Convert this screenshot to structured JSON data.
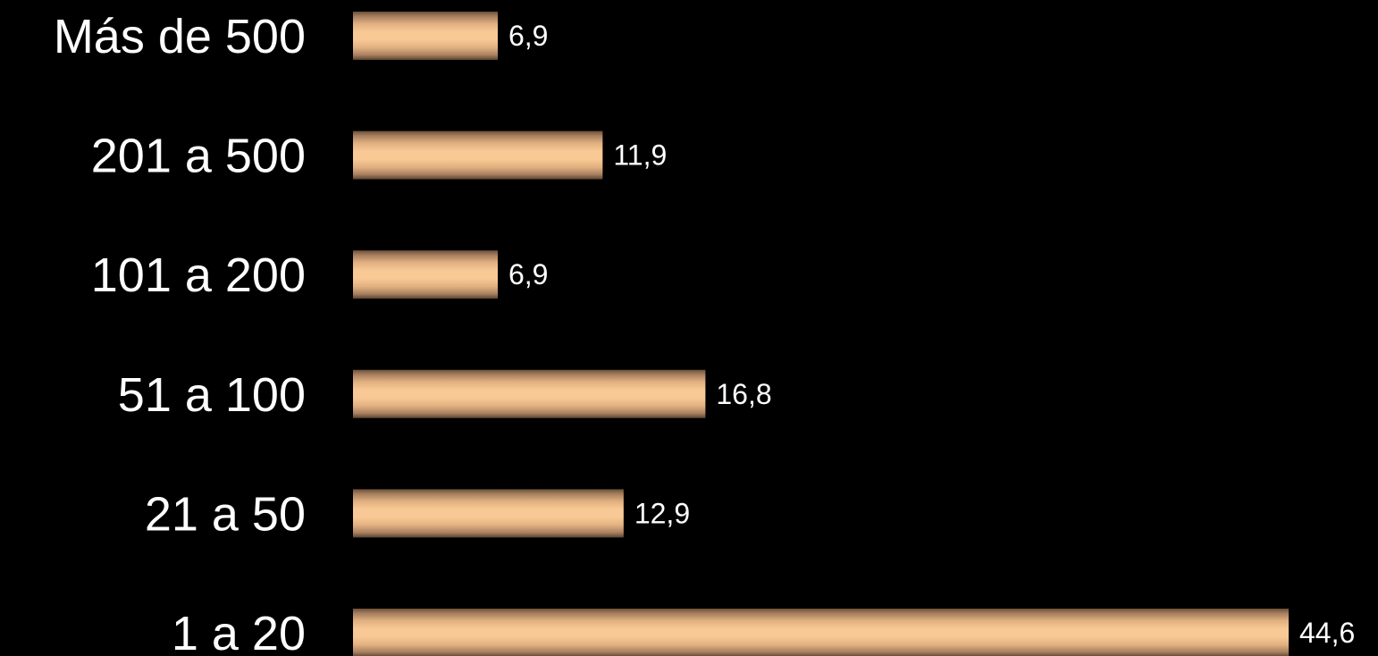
{
  "chart_data": {
    "type": "bar",
    "orientation": "horizontal",
    "categories": [
      "Más de 500",
      "201 a 500",
      "101 a 200",
      "51 a 100",
      "21 a 50",
      "1 a 20"
    ],
    "values": [
      6.9,
      11.9,
      6.9,
      16.8,
      12.9,
      44.6
    ],
    "value_labels": [
      "6,9",
      "11,9",
      "6,9",
      "16,8",
      "12,9",
      "44,6"
    ],
    "title": "",
    "xlabel": "",
    "ylabel": "",
    "xlim": [
      0,
      44.6
    ],
    "grid": false,
    "legend": "none"
  },
  "colors": {
    "background": "#000000",
    "bar_light": "#f7c48f",
    "bar_dark": "#5a4430",
    "text": "#ffffff"
  }
}
